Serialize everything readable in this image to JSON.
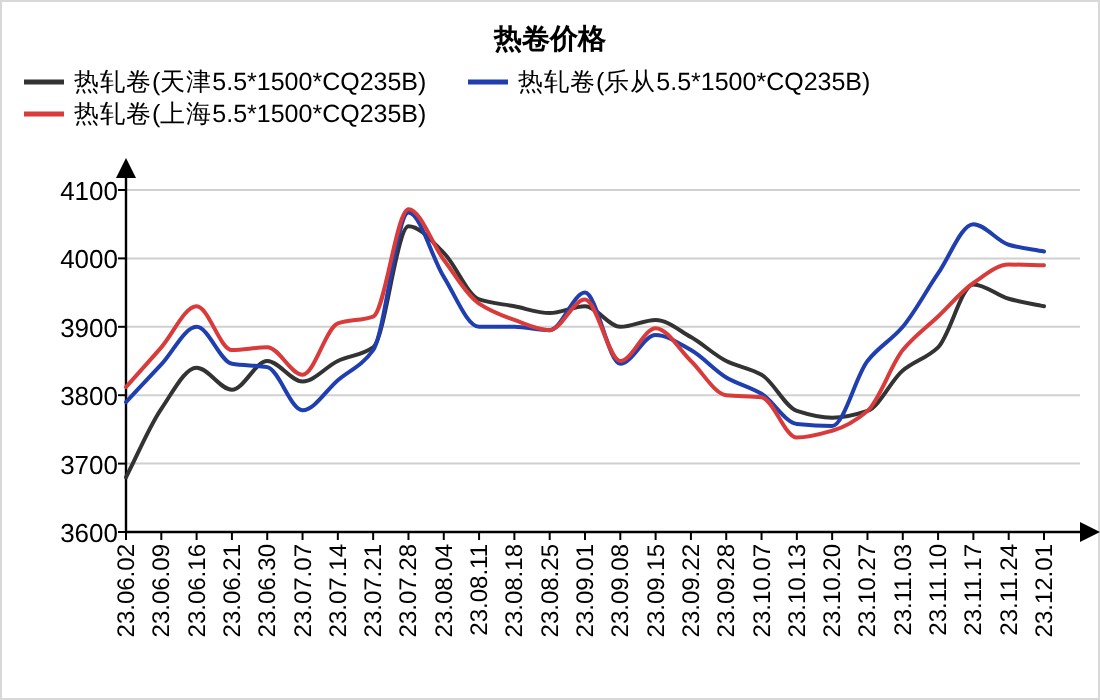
{
  "chart_data": {
    "type": "line",
    "title": "热卷价格",
    "categories": [
      "23.06.02",
      "23.06.09",
      "23.06.16",
      "23.06.21",
      "23.06.30",
      "23.07.07",
      "23.07.14",
      "23.07.21",
      "23.07.28",
      "23.08.04",
      "23.08.11",
      "23.08.18",
      "23.08.25",
      "23.09.01",
      "23.09.08",
      "23.09.15",
      "23.09.22",
      "23.09.28",
      "23.10.07",
      "23.10.13",
      "23.10.20",
      "23.10.27",
      "23.11.03",
      "23.11.10",
      "23.11.17",
      "23.11.24",
      "23.12.01"
    ],
    "series": [
      {
        "name": "热轧卷(天津5.5*1500*CQ235B)",
        "color": "#333333",
        "values": [
          3680,
          3780,
          3840,
          3808,
          3850,
          3820,
          3850,
          3870,
          4047,
          4008,
          3940,
          3930,
          3920,
          3930,
          3900,
          3910,
          3885,
          3850,
          3830,
          3777,
          3767,
          3777,
          3836,
          3870,
          3962,
          3941,
          3930
        ]
      },
      {
        "name": "热轧卷(乐从5.5*1500*CQ235B)",
        "color": "#1f3fb0",
        "values": [
          3790,
          3845,
          3900,
          3846,
          3841,
          3778,
          3822,
          3866,
          4067,
          3973,
          3900,
          3900,
          3895,
          3950,
          3846,
          3888,
          3866,
          3826,
          3802,
          3758,
          3755,
          3850,
          3900,
          3978,
          4050,
          4020,
          4010
        ]
      },
      {
        "name": "热轧卷(上海5.5*1500*CQ235B)",
        "color": "#d93a3a",
        "values": [
          3812,
          3870,
          3930,
          3866,
          3870,
          3830,
          3905,
          3915,
          4072,
          3998,
          3934,
          3910,
          3895,
          3940,
          3850,
          3898,
          3850,
          3800,
          3797,
          3738,
          3748,
          3777,
          3866,
          3915,
          3964,
          3991,
          3990
        ]
      }
    ],
    "ylim": [
      3600,
      4100
    ],
    "yticks": [
      3600,
      3700,
      3800,
      3900,
      4000,
      4100
    ],
    "grid": "y",
    "legend": "top"
  }
}
